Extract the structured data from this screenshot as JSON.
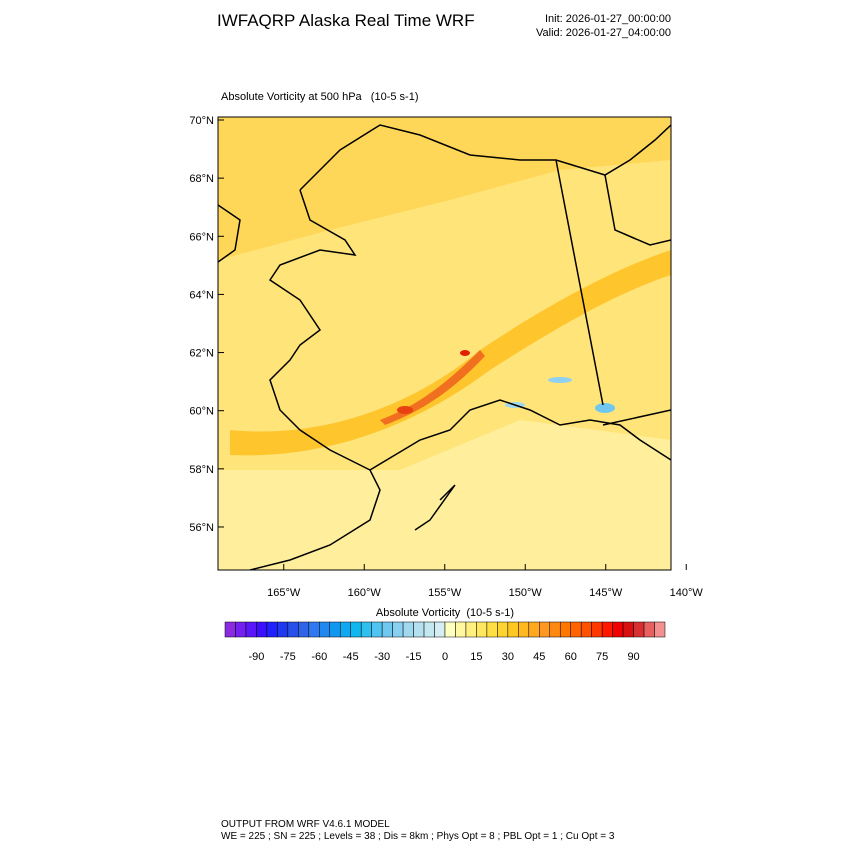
{
  "header": {
    "title": "IWFAQRP Alaska Real Time WRF",
    "init": "Init: 2026-01-27_00:00:00",
    "valid": "Valid: 2026-01-27_04:00:00"
  },
  "map": {
    "title": "Absolute Vorticity at 500 hPa   (10-5 s-1)",
    "lat_ticks": [
      {
        "value": 70,
        "label": "70°N"
      },
      {
        "value": 68,
        "label": "68°N"
      },
      {
        "value": 66,
        "label": "66°N"
      },
      {
        "value": 64,
        "label": "64°N"
      },
      {
        "value": 62,
        "label": "62°N"
      },
      {
        "value": 60,
        "label": "60°N"
      },
      {
        "value": 58,
        "label": "58°N"
      },
      {
        "value": 56,
        "label": "56°N"
      }
    ],
    "lon_ticks": [
      {
        "value": -165,
        "label": "165°W"
      },
      {
        "value": -160,
        "label": "160°W"
      },
      {
        "value": -155,
        "label": "155°W"
      },
      {
        "value": -150,
        "label": "150°W"
      },
      {
        "value": -145,
        "label": "145°W"
      },
      {
        "value": -140,
        "label": "140°W"
      }
    ]
  },
  "colorbar": {
    "label": "Absolute Vorticity  (10-5 s-1)",
    "lim": [
      -105,
      105
    ],
    "ticks": [
      -90,
      -75,
      -60,
      -45,
      -30,
      -15,
      0,
      15,
      30,
      45,
      60,
      75,
      90
    ],
    "colors": [
      "#8a2be2",
      "#7420f0",
      "#5a18f8",
      "#3c10ff",
      "#2020ff",
      "#2038f0",
      "#2850e8",
      "#3064e8",
      "#3078f0",
      "#2088f0",
      "#1098f0",
      "#10a8f0",
      "#10b8f0",
      "#30c0f0",
      "#50c4f0",
      "#70c8f0",
      "#88d0f0",
      "#a0d8f0",
      "#b4e0f0",
      "#c4e8f0",
      "#d4eef4",
      "#ffffc0",
      "#fff8a0",
      "#fff080",
      "#ffe860",
      "#ffe040",
      "#ffd430",
      "#ffc820",
      "#ffb820",
      "#ffa820",
      "#ff9820",
      "#ff8810",
      "#ff7800",
      "#ff6400",
      "#ff5000",
      "#ff3800",
      "#ff1800",
      "#f00000",
      "#d81010",
      "#d83030",
      "#e86060",
      "#f49090"
    ]
  },
  "footer": {
    "line1": "OUTPUT FROM WRF V4.6.1 MODEL",
    "line2": "WE = 225 ; SN = 225 ; Levels = 38 ; Dis = 8km ; Phys Opt = 8 ; PBL Opt = 1 ; Cu Opt = 3"
  }
}
